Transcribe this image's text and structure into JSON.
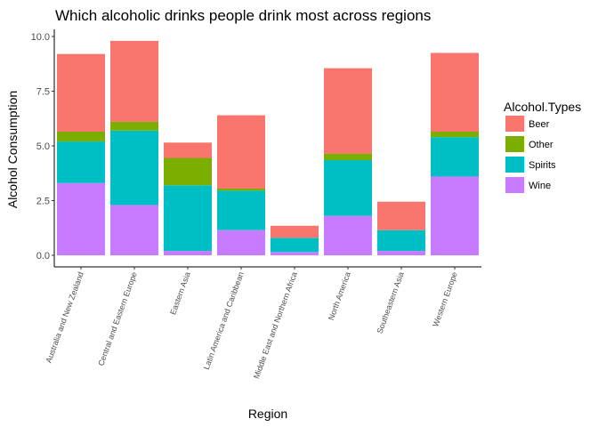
{
  "chart_data": {
    "type": "bar",
    "stacked": true,
    "title": "Which alcoholic drinks people drink most across regions",
    "xlabel": "Region",
    "ylabel": "Alcohol Consumption",
    "ylim": [
      0,
      10
    ],
    "yticks": [
      "0.0",
      "2.5",
      "5.0",
      "7.5",
      "10.0"
    ],
    "grid": false,
    "legend_position": "right",
    "legend_title": "Alcohol.Types",
    "categories": [
      "Australia and New Zealand",
      "Central and Eastern Europe",
      "Eastern Asia",
      "Latin America and Caribbean",
      "Middle East and Northern Africa",
      "North America",
      "Southeastern Asia",
      "Western Europe"
    ],
    "stack_order": [
      "Wine",
      "Spirits",
      "Other",
      "Beer"
    ],
    "series": [
      {
        "name": "Beer",
        "color": "#F8766D",
        "values": [
          3.55,
          3.7,
          0.7,
          3.35,
          0.55,
          3.9,
          1.3,
          3.6
        ]
      },
      {
        "name": "Other",
        "color": "#7CAE00",
        "values": [
          0.45,
          0.4,
          1.25,
          0.1,
          0.0,
          0.3,
          0.0,
          0.25
        ]
      },
      {
        "name": "Spirits",
        "color": "#00BFC4",
        "values": [
          1.9,
          3.4,
          3.0,
          1.8,
          0.65,
          2.55,
          0.95,
          1.8
        ]
      },
      {
        "name": "Wine",
        "color": "#C77CFF",
        "values": [
          3.3,
          2.3,
          0.2,
          1.15,
          0.15,
          1.8,
          0.2,
          3.6
        ]
      }
    ]
  }
}
